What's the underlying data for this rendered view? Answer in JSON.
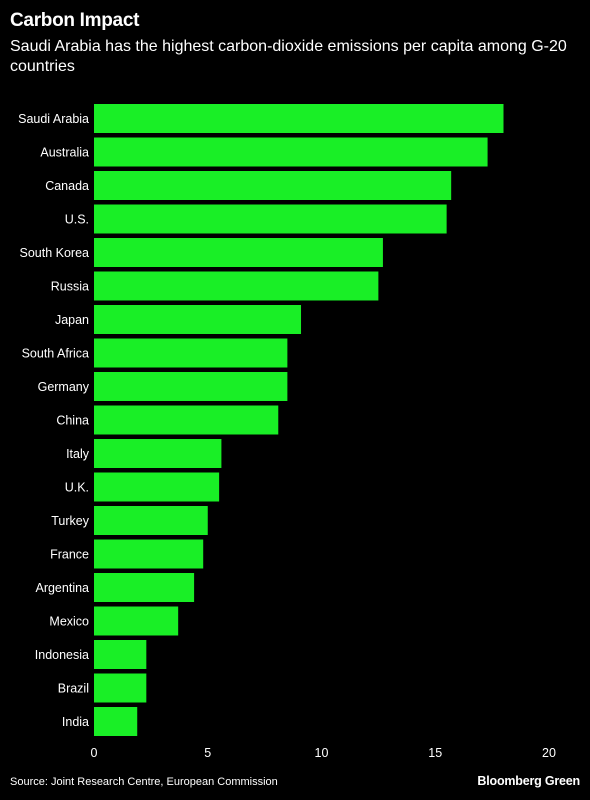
{
  "title": "Carbon Impact",
  "subtitle": "Saudi Arabia has the highest carbon-dioxide emissions per capita among G-20 countries",
  "source": "Source: Joint Research Centre, European Commission",
  "brand": "Bloomberg Green",
  "colors": {
    "bar": "#19ef26",
    "background": "#000000",
    "text": "#ffffff"
  },
  "chart_data": {
    "type": "bar",
    "orientation": "horizontal",
    "categories": [
      "Saudi Arabia",
      "Australia",
      "Canada",
      "U.S.",
      "South Korea",
      "Russia",
      "Japan",
      "South Africa",
      "Germany",
      "China",
      "Italy",
      "U.K.",
      "Turkey",
      "France",
      "Argentina",
      "Mexico",
      "Indonesia",
      "Brazil",
      "India"
    ],
    "values": [
      18.0,
      17.3,
      15.7,
      15.5,
      12.7,
      12.5,
      9.1,
      8.5,
      8.5,
      8.1,
      5.6,
      5.5,
      5.0,
      4.8,
      4.4,
      3.7,
      2.3,
      2.3,
      1.9
    ],
    "xlim": [
      0,
      20
    ],
    "xticks": [
      "0",
      "5",
      "10",
      "15",
      "20"
    ],
    "xlabel": "",
    "ylabel": "",
    "grid": false,
    "legend": "none"
  }
}
